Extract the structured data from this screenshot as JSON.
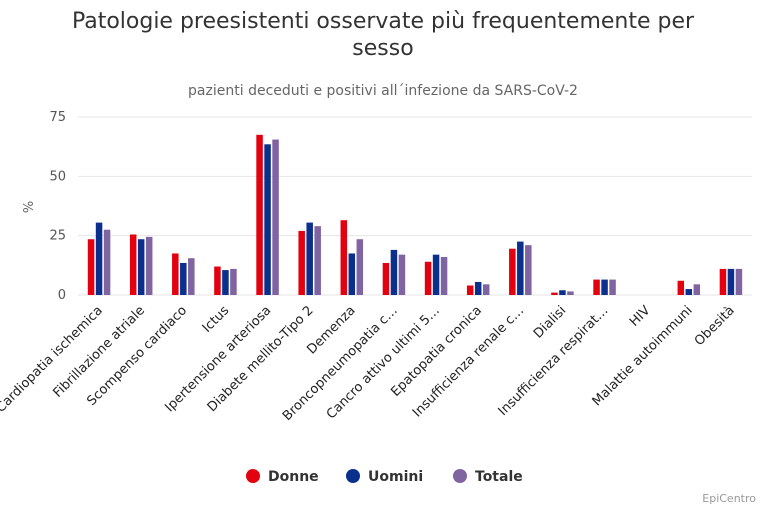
{
  "chart_data": {
    "type": "bar",
    "title": "Patologie preesistenti osservate più frequentemente per sesso",
    "subtitle": "pazienti deceduti e positivi all´infezione da SARS-CoV-2",
    "ylabel": "%",
    "ylim": [
      0,
      75
    ],
    "yticks": [
      0,
      25,
      50,
      75
    ],
    "grid": true,
    "legend_position": "bottom-center",
    "credit": "EpiCentro",
    "categories": [
      "Cardiopatia ischemica",
      "Fibrillazione atriale",
      "Scompenso cardiaco",
      "Ictus",
      "Ipertensione arteriosa",
      "Diabete mellito-Tipo 2",
      "Demenza",
      "Broncopneumopatia c…",
      "Cancro attivo ultimi 5…",
      "Epatopatia cronica",
      "Insufficienza renale c…",
      "Dialisi",
      "Insufficienza respirat…",
      "HIV",
      "Malattie autoimmuni",
      "Obesità"
    ],
    "series": [
      {
        "name": "Donne",
        "color": "#e3000f",
        "values": [
          23.5,
          25.5,
          17.5,
          12,
          67.5,
          27,
          31.5,
          13.5,
          14,
          4,
          19.5,
          1,
          6.5,
          0,
          6,
          11
        ]
      },
      {
        "name": "Uomini",
        "color": "#0a2f8c",
        "values": [
          30.5,
          23.5,
          13.5,
          10.5,
          63.5,
          30.5,
          17.5,
          19,
          17,
          5.5,
          22.5,
          2,
          6.5,
          0,
          2.5,
          11
        ]
      },
      {
        "name": "Totale",
        "color": "#8064a2",
        "values": [
          27.5,
          24.5,
          15.5,
          11,
          65.5,
          29,
          23.5,
          17,
          16,
          4.5,
          21,
          1.5,
          6.5,
          0,
          4.5,
          11
        ]
      }
    ]
  }
}
